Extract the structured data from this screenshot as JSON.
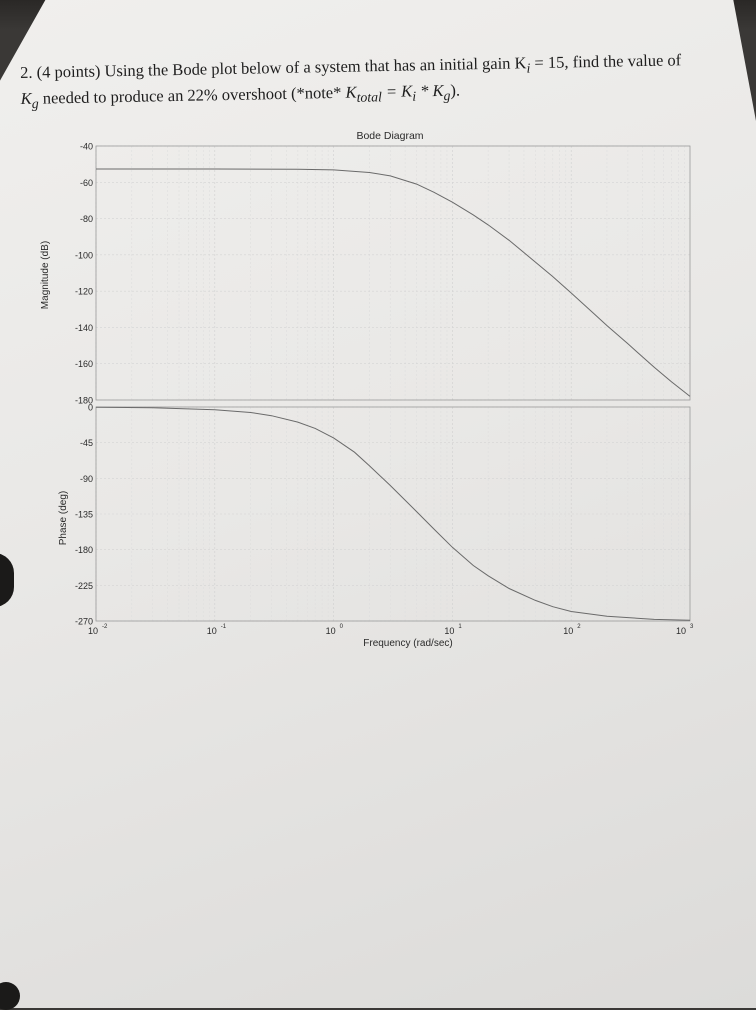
{
  "problem": {
    "line1": "2. (4 points) Using the Bode plot below of a system that has an initial gain K",
    "line1_sub": "i",
    "line1_rest": " = 15, find the value of",
    "line2_k": "K",
    "line2_sub": "g",
    "line2_text": " needed to produce an 22% overshoot (*note* ",
    "line2_ktotal": "K",
    "line2_ktotal_sub": "total",
    "line2_eq": " = K",
    "line2_ki_sub": "i",
    "line2_times": " * K",
    "line2_kg_sub": "g",
    "line2_end": ")."
  },
  "chart_data": {
    "type": "line",
    "title": "Bode Diagram",
    "xlabel": "Frequency  (rad/sec)",
    "xscale": "log",
    "xlim": [
      0.01,
      1000
    ],
    "x_ticks": [
      {
        "base": "10",
        "exp": "-2"
      },
      {
        "base": "10",
        "exp": "-1"
      },
      {
        "base": "10",
        "exp": "0"
      },
      {
        "base": "10",
        "exp": "1"
      },
      {
        "base": "10",
        "exp": "2"
      },
      {
        "base": "10",
        "exp": "3"
      }
    ],
    "grid": true,
    "magnitude": {
      "ylabel": "Magnitude (dB)",
      "ylim": [
        -180,
        -40
      ],
      "y_ticks": [
        "-40",
        "-60",
        "-80",
        "-100",
        "-120",
        "-140",
        "-160",
        "-180"
      ],
      "points": [
        [
          0.01,
          -52.7
        ],
        [
          0.1,
          -52.7
        ],
        [
          0.5,
          -52.8
        ],
        [
          1,
          -53.2
        ],
        [
          2,
          -54.6
        ],
        [
          3,
          -56.5
        ],
        [
          5,
          -61
        ],
        [
          7,
          -65.5
        ],
        [
          10,
          -71
        ],
        [
          15,
          -78
        ],
        [
          20,
          -83.5
        ],
        [
          30,
          -92
        ],
        [
          50,
          -104
        ],
        [
          70,
          -112
        ],
        [
          100,
          -121
        ],
        [
          150,
          -131.5
        ],
        [
          200,
          -139
        ],
        [
          300,
          -149
        ],
        [
          500,
          -162
        ],
        [
          700,
          -170
        ],
        [
          1000,
          -178
        ]
      ]
    },
    "phase": {
      "ylabel": "Phase (deg)",
      "ylim": [
        -270,
        0
      ],
      "y_ticks": [
        "0",
        "-45",
        "-90",
        "-135",
        "-180",
        "-225",
        "-270"
      ],
      "points": [
        [
          0.01,
          -0.3
        ],
        [
          0.03,
          -1
        ],
        [
          0.1,
          -3.5
        ],
        [
          0.2,
          -7
        ],
        [
          0.3,
          -11
        ],
        [
          0.5,
          -19
        ],
        [
          0.7,
          -27
        ],
        [
          1,
          -39
        ],
        [
          1.5,
          -57
        ],
        [
          2,
          -74
        ],
        [
          3,
          -99
        ],
        [
          5,
          -132
        ],
        [
          7,
          -154
        ],
        [
          10,
          -177
        ],
        [
          15,
          -200
        ],
        [
          20,
          -213
        ],
        [
          30,
          -229
        ],
        [
          50,
          -244
        ],
        [
          70,
          -252
        ],
        [
          100,
          -258
        ],
        [
          200,
          -264
        ],
        [
          500,
          -268
        ],
        [
          1000,
          -269
        ]
      ]
    }
  }
}
